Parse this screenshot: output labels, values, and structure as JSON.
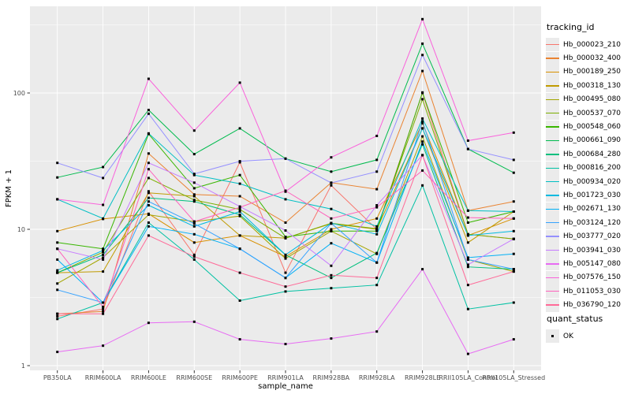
{
  "chart_data": {
    "type": "line",
    "title": "",
    "xlabel": "sample_name",
    "ylabel": "FPKM + 1",
    "y_scale": "log10",
    "y_ticks": [
      1,
      10,
      100
    ],
    "y_minor_ticks": [
      3.162,
      31.62,
      316.2
    ],
    "ylim": [
      0.92,
      450
    ],
    "grid": "on",
    "panel_bg": "#ebebeb",
    "grid_color": "#ffffff",
    "tick_label_color": "#4d4d4d",
    "axis_title_color": "#000000",
    "point_marker": {
      "shape": "filled-square",
      "color": "#000000",
      "size": 3
    },
    "categories": [
      "PB350LA",
      "RRIM600LA",
      "RRIM600LE",
      "RRIM600SE",
      "RRIM600PE",
      "RRIM901LA",
      "RRIM928BA",
      "RRIM928LA",
      "RRIM928LE",
      "RRII105LA_Control",
      "RRII105LA_Stressed"
    ],
    "legend": {
      "title": "tracking_id",
      "position": "right"
    },
    "second_legend": {
      "title": "quant_status",
      "items": [
        {
          "label": "OK",
          "marker": "filled-square"
        }
      ]
    },
    "series": [
      {
        "name": "Hb_000023_210",
        "color": "#F8766D",
        "values": [
          2.3,
          2.6,
          19,
          6.5,
          31,
          4.8,
          21,
          10,
          100,
          9.2,
          8.5
        ]
      },
      {
        "name": "Hb_000032_400",
        "color": "#EA8331",
        "values": [
          2.4,
          2.5,
          36,
          18,
          17.5,
          11.2,
          22,
          19.7,
          145,
          13.7,
          16
        ]
      },
      {
        "name": "Hb_000189_250",
        "color": "#D89000",
        "values": [
          9.7,
          11.9,
          13,
          8,
          9,
          6.3,
          10,
          12,
          60,
          9,
          12
        ]
      },
      {
        "name": "Hb_000318_130",
        "color": "#C09B00",
        "values": [
          4.8,
          4.9,
          18.5,
          17.5,
          9,
          8.6,
          11,
          10,
          55,
          8,
          13.5
        ]
      },
      {
        "name": "Hb_000495_080",
        "color": "#A3A500",
        "values": [
          4.0,
          6.2,
          12.8,
          11.4,
          12.5,
          6.1,
          9.7,
          6.6,
          48,
          6.0,
          4.9
        ]
      },
      {
        "name": "Hb_000537_070",
        "color": "#7CAE00",
        "values": [
          4.8,
          6.8,
          23.8,
          16.4,
          14,
          8.6,
          11.1,
          10.1,
          90,
          9.2,
          8.5
        ]
      },
      {
        "name": "Hb_000548_060",
        "color": "#39B600",
        "values": [
          8.0,
          7.2,
          50,
          20,
          25,
          8.8,
          9.7,
          9.7,
          101,
          11.2,
          13.5
        ]
      },
      {
        "name": "Hb_000661_090",
        "color": "#00BB4E",
        "values": [
          24,
          28.6,
          75,
          35.6,
          55,
          33,
          26.5,
          32.3,
          230,
          38.8,
          26
        ]
      },
      {
        "name": "Hb_000684_280",
        "color": "#00BF7D",
        "values": [
          4.8,
          6.5,
          17,
          16,
          12.8,
          6.5,
          4.4,
          6.7,
          42,
          5.3,
          5.1
        ]
      },
      {
        "name": "Hb_000816_200",
        "color": "#00C1A3",
        "values": [
          2.2,
          2.9,
          11.2,
          6.0,
          3.0,
          3.5,
          3.7,
          3.9,
          21,
          2.6,
          2.9
        ]
      },
      {
        "name": "Hb_000934_020",
        "color": "#00BFC4",
        "values": [
          16.6,
          12,
          50.5,
          25,
          21.6,
          16.6,
          14.1,
          10.5,
          65,
          13.7,
          13.5
        ]
      },
      {
        "name": "Hb_001723_030",
        "color": "#00BAE0",
        "values": [
          5.0,
          7.0,
          15,
          10.5,
          13.5,
          6.5,
          11.1,
          9.2,
          55,
          9.0,
          9.7
        ]
      },
      {
        "name": "Hb_002671_130",
        "color": "#00B0F6",
        "values": [
          6.0,
          2.9,
          10.5,
          9.2,
          7.2,
          4.4,
          7.9,
          5.7,
          44,
          6.2,
          6.6
        ]
      },
      {
        "name": "Hb_003124_120",
        "color": "#35A2FF",
        "values": [
          3.6,
          2.9,
          16,
          11,
          7.2,
          4.4,
          11.1,
          5.7,
          62,
          6.0,
          5.1
        ]
      },
      {
        "name": "Hb_003777_020",
        "color": "#9590FF",
        "values": [
          30.7,
          23.8,
          70.5,
          25.5,
          31.6,
          33,
          21.9,
          26.5,
          190,
          38.8,
          32.3
        ]
      },
      {
        "name": "Hb_003941_030",
        "color": "#C77CFF",
        "values": [
          7.2,
          6.0,
          30.7,
          22,
          14.7,
          9.8,
          5.4,
          15,
          35,
          5.5,
          8.5
        ]
      },
      {
        "name": "Hb_005147_080",
        "color": "#E76BF3",
        "values": [
          1.26,
          1.4,
          2.06,
          2.1,
          1.56,
          1.44,
          1.58,
          1.78,
          5.1,
          1.22,
          1.56
        ]
      },
      {
        "name": "Hb_007576_150",
        "color": "#FA62DB",
        "values": [
          16.6,
          15.1,
          127,
          53,
          119,
          18.9,
          33.7,
          48.4,
          348,
          44.7,
          51.2
        ]
      },
      {
        "name": "Hb_011053_030",
        "color": "#FF62BC",
        "values": [
          7.2,
          2.7,
          27.6,
          11.4,
          14.5,
          19.2,
          12,
          14.5,
          27,
          12.2,
          12
        ]
      },
      {
        "name": "Hb_036790_120",
        "color": "#FF6A98",
        "values": [
          2.4,
          2.4,
          9.0,
          6.3,
          4.8,
          3.8,
          4.6,
          4.4,
          35,
          3.9,
          4.9
        ]
      }
    ]
  }
}
